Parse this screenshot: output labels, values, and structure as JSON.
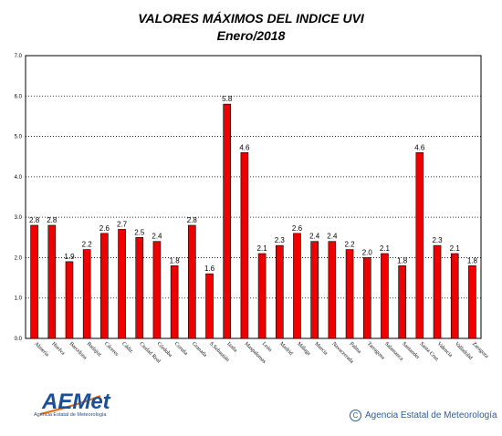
{
  "header": {
    "title": "VALORES MÁXIMOS DEL INDICE UVI",
    "subtitle": "Enero/2018"
  },
  "logo": {
    "name": "AEMet",
    "tagline": "Agencia Estatal de Meteorología"
  },
  "footer": {
    "copyright_symbol": "C",
    "copyright": "Agencia Estatal de Meteorología"
  },
  "colors": {
    "bar": "#ee0000",
    "bar_border": "#000000",
    "grid": "#000000",
    "brand": "#1a4f9a"
  },
  "chart_data": {
    "type": "bar",
    "title": "VALORES MÁXIMOS DEL INDICE UVI",
    "subtitle": "Enero/2018",
    "xlabel": "",
    "ylabel": "",
    "ylim": [
      0,
      7
    ],
    "yticks": [
      "0.0",
      "1.0",
      "2.0",
      "3.0",
      "4.0",
      "5.0",
      "6.0",
      "7.0"
    ],
    "grid": true,
    "categories": [
      "Almería",
      "Huelva",
      "Barcelona",
      "Badajoz",
      "Cáceres",
      "Cádiz",
      "Ciudad Real",
      "Córdoba",
      "Coruña",
      "Granada",
      "S.Sebastián",
      "Izaña",
      "Maspalomas",
      "León",
      "Madrid",
      "Málaga",
      "Murcia",
      "Navacerrada",
      "Palma",
      "Tarragona",
      "Salamanca",
      "Santander",
      "Santa Cruz",
      "Valencia",
      "Valladolid",
      "Zaragoza"
    ],
    "values": [
      2.8,
      2.8,
      1.9,
      2.2,
      2.6,
      2.7,
      2.5,
      2.4,
      1.8,
      2.8,
      1.6,
      5.8,
      4.6,
      2.1,
      2.3,
      2.6,
      2.4,
      2.4,
      2.2,
      2.0,
      2.1,
      1.8,
      4.6,
      2.3,
      2.1,
      1.8
    ],
    "labels": [
      "2.8",
      "2.8",
      "1.9",
      "2.2",
      "2.6",
      "2.7",
      "2.5",
      "2.4",
      "1.8",
      "2.8",
      "1.6",
      "5.8",
      "4.6",
      "2.1",
      "2.3",
      "2.6",
      "2.4",
      "2.4",
      "2.2",
      "2.0",
      "2.1",
      "1.8",
      "4.6",
      "2.3",
      "2.1",
      "1.8"
    ]
  }
}
